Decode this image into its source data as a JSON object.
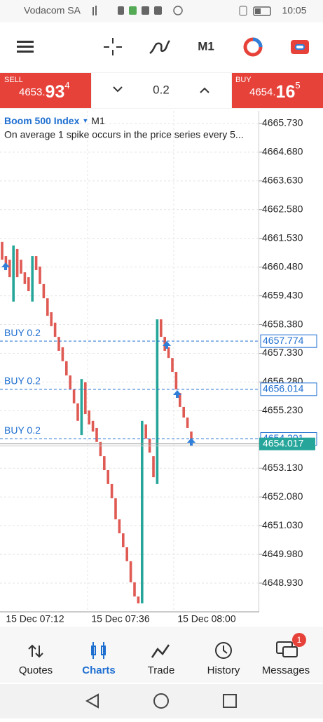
{
  "status_bar": {
    "carrier": "Vodacom SA",
    "time": "10:05"
  },
  "toolbar": {
    "timeframe": "M1"
  },
  "trade_panel": {
    "sell": {
      "label": "SELL",
      "price_parts": [
        "4653.",
        "93",
        "4"
      ]
    },
    "buy": {
      "label": "BUY",
      "price_parts": [
        "4654.",
        "16",
        "5"
      ]
    },
    "volume": "0.2"
  },
  "chart": {
    "symbol": "Boom 500 Index",
    "timeframe": "M1",
    "description": "On average 1 spike occurs in the price series every 5...",
    "ylim": [
      4647.88,
      4666.19
    ],
    "yticks": [
      {
        "value": 4665.73,
        "label": "4665.730"
      },
      {
        "value": 4664.68,
        "label": "4664.680"
      },
      {
        "value": 4663.63,
        "label": "4663.630"
      },
      {
        "value": 4662.58,
        "label": "4662.580"
      },
      {
        "value": 4661.53,
        "label": "4661.530"
      },
      {
        "value": 4660.48,
        "label": "4660.480"
      },
      {
        "value": 4659.43,
        "label": "4659.430"
      },
      {
        "value": 4658.38,
        "label": "4658.380"
      },
      {
        "value": 4657.33,
        "label": "4657.330"
      },
      {
        "value": 4656.28,
        "label": "4656.280"
      },
      {
        "value": 4655.23,
        "label": "4655.230"
      },
      {
        "value": 4653.13,
        "label": "4653.130"
      },
      {
        "value": 4652.08,
        "label": "4652.080"
      },
      {
        "value": 4651.03,
        "label": "4651.030"
      },
      {
        "value": 4649.98,
        "label": "4649.980"
      },
      {
        "value": 4648.93,
        "label": "4648.930"
      }
    ],
    "time_labels": [
      "15 Dec 07:12",
      "15 Dec 07:36",
      "15 Dec 08:00"
    ],
    "positions": [
      {
        "label": "BUY 0.2",
        "price": 4657.774
      },
      {
        "label": "BUY 0.2",
        "price": 4656.014
      },
      {
        "label": "BUY 0.2",
        "price": 4654.201
      }
    ],
    "current_price": 4654.017,
    "candles": [
      {
        "open": 4661.4,
        "close": 4660.75
      },
      {
        "open": 4660.88,
        "close": 4660.55
      },
      {
        "open": 4660.75,
        "close": 4660.11
      },
      {
        "open": 4659.22,
        "close": 4661.27
      },
      {
        "open": 4661.14,
        "close": 4660.11
      },
      {
        "open": 4660.75,
        "close": 4660.24
      },
      {
        "open": 4660.29,
        "close": 4659.86
      },
      {
        "open": 4660.11,
        "close": 4659.6
      },
      {
        "open": 4659.22,
        "close": 4660.88
      },
      {
        "open": 4660.88,
        "close": 4660.37
      },
      {
        "open": 4660.5,
        "close": 4659.86
      },
      {
        "open": 4659.86,
        "close": 4659.34
      },
      {
        "open": 4659.34,
        "close": 4658.7
      },
      {
        "open": 4658.83,
        "close": 4658.32
      },
      {
        "open": 4658.45,
        "close": 4657.93
      },
      {
        "open": 4657.93,
        "close": 4657.42
      },
      {
        "open": 4657.55,
        "close": 4657.04
      },
      {
        "open": 4657.04,
        "close": 4656.52
      },
      {
        "open": 4656.52,
        "close": 4656.01
      },
      {
        "open": 4656.01,
        "close": 4655.5
      },
      {
        "open": 4655.5,
        "close": 4654.86
      },
      {
        "open": 4654.34,
        "close": 4656.39
      },
      {
        "open": 4656.27,
        "close": 4655.11
      },
      {
        "open": 4655.24,
        "close": 4654.73
      },
      {
        "open": 4654.86,
        "close": 4654.47
      },
      {
        "open": 4654.6,
        "close": 4654.09
      },
      {
        "open": 4654.09,
        "close": 4653.57
      },
      {
        "open": 4653.57,
        "close": 4653.06
      },
      {
        "open": 4653.06,
        "close": 4652.55
      },
      {
        "open": 4652.55,
        "close": 4652.03
      },
      {
        "open": 4652.03,
        "close": 4651.26
      },
      {
        "open": 4651.26,
        "close": 4650.75
      },
      {
        "open": 4650.75,
        "close": 4650.24
      },
      {
        "open": 4650.24,
        "close": 4649.73
      },
      {
        "open": 4649.73,
        "close": 4648.96
      },
      {
        "open": 4648.96,
        "close": 4648.44
      },
      {
        "open": 4648.44,
        "close": 4648.19
      },
      {
        "open": 4648.19,
        "close": 4654.86
      },
      {
        "open": 4654.73,
        "close": 4654.21
      },
      {
        "open": 4654.21,
        "close": 4653.7
      },
      {
        "open": 4653.57,
        "close": 4652.8
      },
      {
        "open": 4652.55,
        "close": 4658.57
      },
      {
        "open": 4658.57,
        "close": 4657.93
      },
      {
        "open": 4657.93,
        "close": 4657.42
      },
      {
        "open": 4657.55,
        "close": 4657.16
      },
      {
        "open": 4657.16,
        "close": 4656.65
      },
      {
        "open": 4656.65,
        "close": 4656.01
      },
      {
        "open": 4655.88,
        "close": 4655.37
      },
      {
        "open": 4655.37,
        "close": 4654.98
      },
      {
        "open": 4654.98,
        "close": 4654.6
      },
      {
        "open": 4654.47,
        "close": 4654.03
      }
    ]
  },
  "nav": {
    "items": [
      "Quotes",
      "Charts",
      "Trade",
      "History",
      "Messages"
    ],
    "badge": "1"
  }
}
